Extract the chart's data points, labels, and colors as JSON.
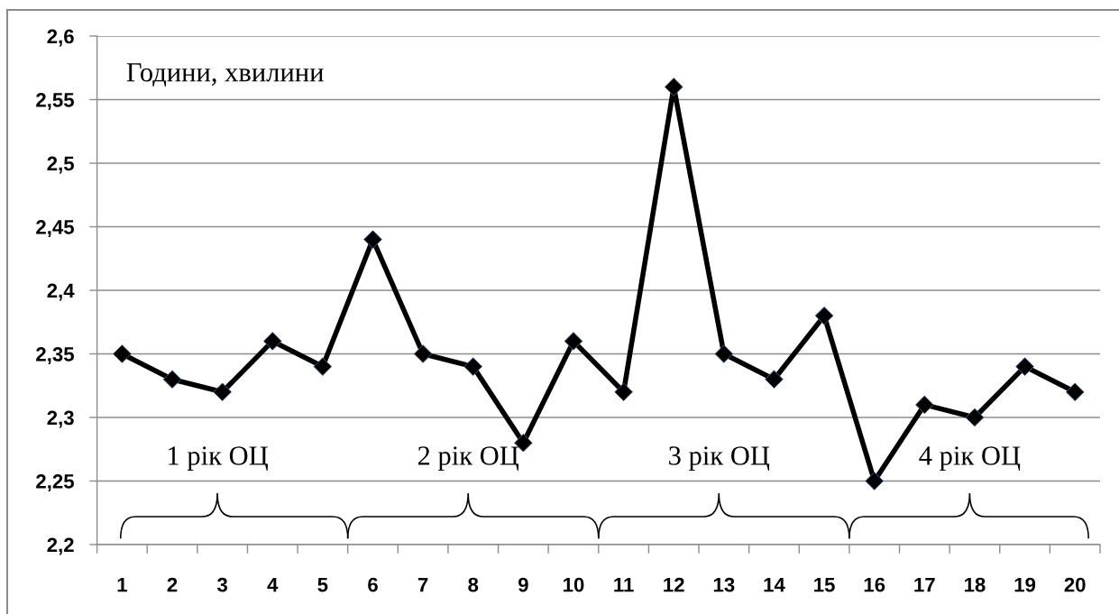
{
  "chart_data": {
    "type": "line",
    "categories": [
      "1",
      "2",
      "3",
      "4",
      "5",
      "6",
      "7",
      "8",
      "9",
      "10",
      "11",
      "12",
      "13",
      "14",
      "15",
      "16",
      "17",
      "18",
      "19",
      "20"
    ],
    "series": [
      {
        "color": "#000000",
        "values": [
          2.35,
          2.33,
          2.32,
          2.36,
          2.34,
          2.44,
          2.35,
          2.34,
          2.28,
          2.36,
          2.32,
          2.56,
          2.35,
          2.33,
          2.38,
          2.25,
          2.31,
          2.3,
          2.34,
          2.32
        ]
      }
    ],
    "ylim": [
      2.2,
      2.6
    ],
    "yticks": [
      {
        "value": 2.2,
        "label": "2,2"
      },
      {
        "value": 2.25,
        "label": "2,25"
      },
      {
        "value": 2.3,
        "label": "2,3"
      },
      {
        "value": 2.35,
        "label": "2,35"
      },
      {
        "value": 2.4,
        "label": "2,4"
      },
      {
        "value": 2.45,
        "label": "2,45"
      },
      {
        "value": 2.5,
        "label": "2,5"
      },
      {
        "value": 2.55,
        "label": "2,55"
      },
      {
        "value": 2.6,
        "label": "2,6"
      }
    ],
    "grid": "y",
    "marker": "diamond",
    "line_style": "solid",
    "annotations": [
      "Години, хвилини",
      "1 рік ОЦ",
      "2 рік ОЦ",
      "3 рік ОЦ",
      "4 рік ОЦ"
    ]
  }
}
